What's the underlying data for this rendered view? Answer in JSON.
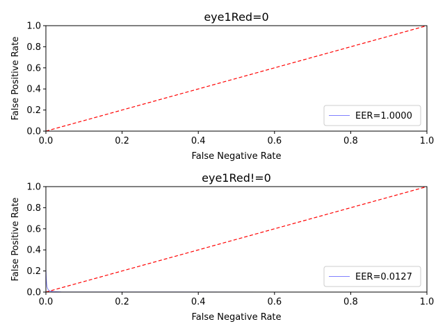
{
  "chart_data": [
    {
      "type": "line",
      "title": "eye1Red=0",
      "xlabel": "False Negative Rate",
      "ylabel": "False Positive Rate",
      "xlim": [
        0,
        1
      ],
      "ylim": [
        0,
        1
      ],
      "xticks": [
        "0.0",
        "0.2",
        "0.4",
        "0.6",
        "0.8",
        "1.0"
      ],
      "yticks": [
        "0.0",
        "0.2",
        "0.4",
        "0.6",
        "0.8",
        "1.0"
      ],
      "grid": false,
      "legend_position": "lower-right",
      "series": [
        {
          "name": "EER=1.0000",
          "color": "#8080ff",
          "style": "solid",
          "x": [],
          "y": []
        },
        {
          "color": "#ff0000",
          "style": "dashed",
          "x": [
            0,
            1
          ],
          "y": [
            0,
            1
          ]
        }
      ]
    },
    {
      "type": "line",
      "title": "eye1Red!=0",
      "xlabel": "False Negative Rate",
      "ylabel": "False Positive Rate",
      "xlim": [
        0,
        1
      ],
      "ylim": [
        0,
        1
      ],
      "xticks": [
        "0.0",
        "0.2",
        "0.4",
        "0.6",
        "0.8",
        "1.0"
      ],
      "yticks": [
        "0.0",
        "0.2",
        "0.4",
        "0.6",
        "0.8",
        "1.0"
      ],
      "grid": false,
      "legend_position": "lower-right",
      "series": [
        {
          "name": "EER=0.0127",
          "color": "#8080ff",
          "style": "solid",
          "x": [
            0,
            0.001,
            0.002,
            0.003,
            0.005,
            0.008,
            0.012,
            0.02,
            0.04,
            0.1,
            0.3,
            0.6,
            1.0
          ],
          "y": [
            0.22,
            0.13,
            0.08,
            0.05,
            0.03,
            0.015,
            0.008,
            0.004,
            0.002,
            0.001,
            0.0005,
            0.0002,
            0
          ]
        },
        {
          "color": "#ff0000",
          "style": "dashed",
          "x": [
            0,
            1
          ],
          "y": [
            0,
            1
          ]
        }
      ]
    }
  ]
}
